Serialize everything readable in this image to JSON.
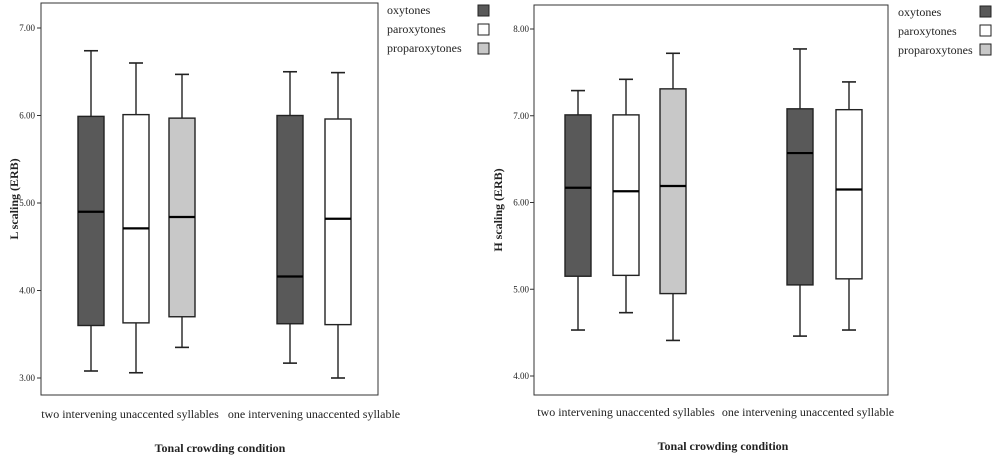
{
  "colors": {
    "oxytones": "#595959",
    "paroxytones": "#ffffff",
    "proparoxytones": "#c8c8c8",
    "stroke": "#222222",
    "frame": "#333333"
  },
  "chart_data": [
    {
      "type": "box",
      "xlabel": "Tonal crowding condition",
      "ylabel": "L scaling (ERB)",
      "ylim": [
        2.95,
        7.05
      ],
      "yticks": [
        "3.00",
        "4.00",
        "5.00",
        "6.00",
        "7.00"
      ],
      "categories": [
        "two intervening unaccented syllables",
        "one intervening unaccented syllable"
      ],
      "legend": [
        {
          "label": "oxytones",
          "color": "#595959"
        },
        {
          "label": "paroxytones",
          "color": "#ffffff"
        },
        {
          "label": "proparoxytones",
          "color": "#c8c8c8"
        }
      ],
      "legend_position": "outside-right-top",
      "series": [
        {
          "name": "oxytones",
          "color": "#595959",
          "boxes": [
            {
              "min": 3.08,
              "q1": 3.6,
              "median": 4.9,
              "q3": 5.99,
              "max": 6.74
            },
            {
              "min": 3.17,
              "q1": 3.62,
              "median": 4.16,
              "q3": 6.0,
              "max": 6.5
            }
          ]
        },
        {
          "name": "paroxytones",
          "color": "#ffffff",
          "boxes": [
            {
              "min": 3.06,
              "q1": 3.63,
              "median": 4.71,
              "q3": 6.01,
              "max": 6.6
            },
            {
              "min": 3.0,
              "q1": 3.61,
              "median": 4.82,
              "q3": 5.96,
              "max": 6.49
            }
          ]
        },
        {
          "name": "proparoxytones",
          "color": "#c8c8c8",
          "boxes": [
            {
              "min": 3.35,
              "q1": 3.7,
              "median": 4.84,
              "q3": 5.97,
              "max": 6.47
            },
            null
          ]
        }
      ]
    },
    {
      "type": "box",
      "xlabel": "Tonal crowding condition",
      "ylabel": "H scaling (ERB)",
      "ylim": [
        3.8,
        8.3
      ],
      "yticks": [
        "4.00",
        "5.00",
        "6.00",
        "7.00",
        "8.00"
      ],
      "categories": [
        "two intervening unaccented syllables",
        "one intervening unaccented syllable"
      ],
      "legend": [
        {
          "label": "oxytones",
          "color": "#595959"
        },
        {
          "label": "paroxytones",
          "color": "#ffffff"
        },
        {
          "label": "proparoxytones",
          "color": "#c8c8c8"
        }
      ],
      "legend_position": "outside-right-top",
      "series": [
        {
          "name": "oxytones",
          "color": "#595959",
          "boxes": [
            {
              "min": 4.53,
              "q1": 5.15,
              "median": 6.17,
              "q3": 7.01,
              "max": 7.29
            },
            {
              "min": 4.46,
              "q1": 5.05,
              "median": 6.57,
              "q3": 7.08,
              "max": 7.77
            }
          ]
        },
        {
          "name": "paroxytones",
          "color": "#ffffff",
          "boxes": [
            {
              "min": 4.73,
              "q1": 5.16,
              "median": 6.13,
              "q3": 7.01,
              "max": 7.42
            },
            {
              "min": 4.53,
              "q1": 5.12,
              "median": 6.15,
              "q3": 7.07,
              "max": 7.39
            }
          ]
        },
        {
          "name": "proparoxytones",
          "color": "#c8c8c8",
          "boxes": [
            {
              "min": 4.41,
              "q1": 4.95,
              "median": 6.19,
              "q3": 7.31,
              "max": 7.72
            },
            null
          ]
        }
      ]
    }
  ]
}
